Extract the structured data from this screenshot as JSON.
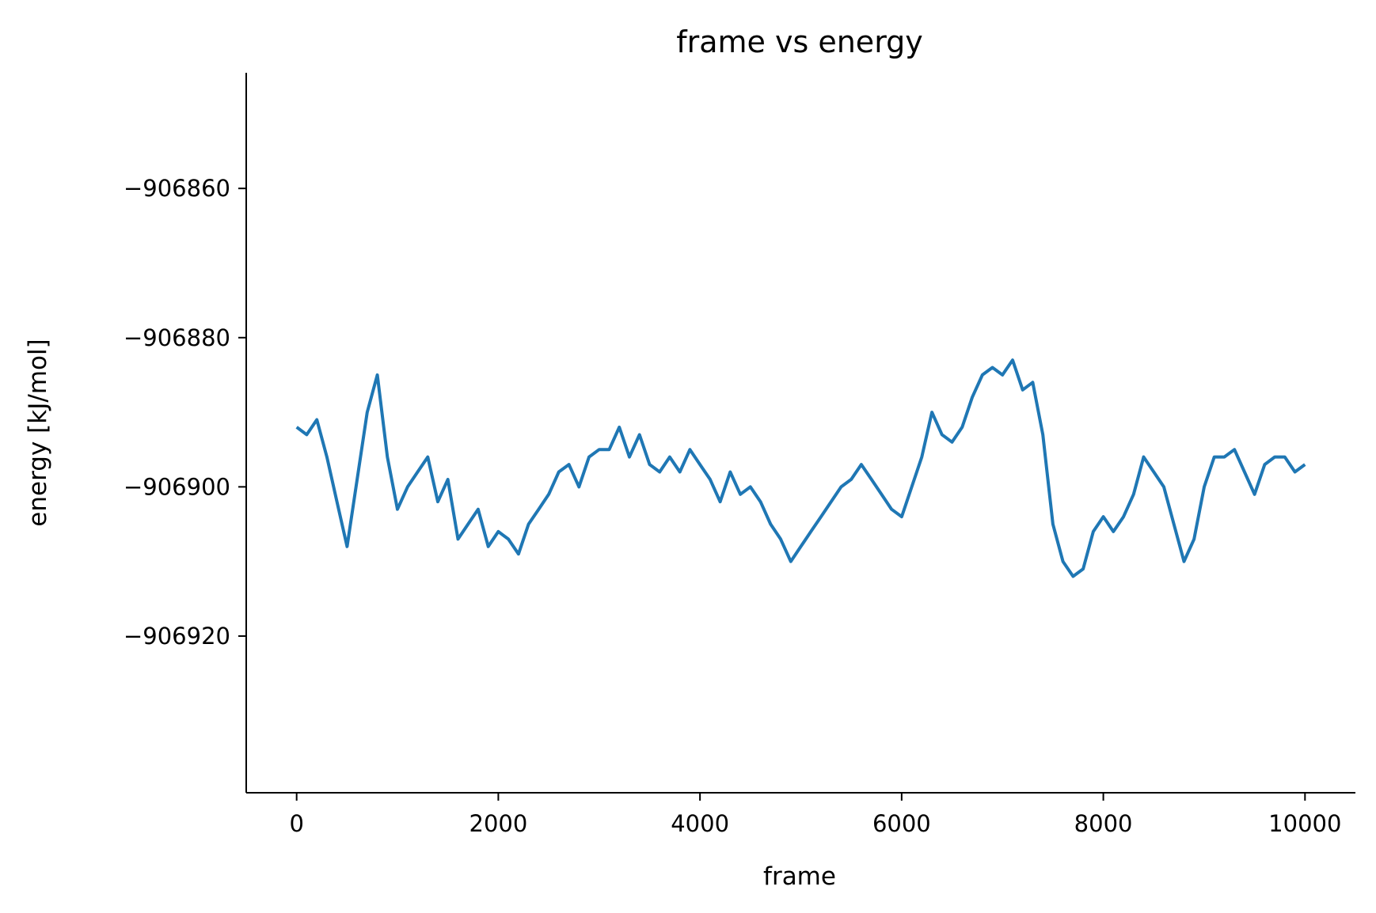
{
  "chart_data": {
    "type": "line",
    "title": "frame vs energy",
    "xlabel": "frame",
    "ylabel": "energy [kJ/mol]",
    "xlim": [
      -500,
      10500
    ],
    "ylim": [
      -906941,
      -906844.5
    ],
    "x_ticks": [
      0,
      2000,
      4000,
      6000,
      8000,
      10000
    ],
    "x_tick_labels": [
      "0",
      "2000",
      "4000",
      "6000",
      "8000",
      "10000"
    ],
    "y_ticks": [
      -906860,
      -906880,
      -906900,
      -906920
    ],
    "y_tick_labels": [
      "−906860",
      "−906880",
      "−906900",
      "−906920"
    ],
    "grid": false,
    "spines": [
      "left",
      "bottom"
    ],
    "colors": {
      "line": "#1f77b4",
      "axis": "#000000"
    },
    "series": [
      {
        "x": [
          0,
          100,
          200,
          300,
          400,
          500,
          600,
          700,
          800,
          900,
          1000,
          1100,
          1200,
          1300,
          1400,
          1500,
          1600,
          1700,
          1800,
          1900,
          2000,
          2100,
          2200,
          2300,
          2400,
          2500,
          2600,
          2700,
          2800,
          2900,
          3000,
          3100,
          3200,
          3300,
          3400,
          3500,
          3600,
          3700,
          3800,
          3900,
          4000,
          4100,
          4200,
          4300,
          4400,
          4500,
          4600,
          4700,
          4800,
          4900,
          5000,
          5100,
          5200,
          5300,
          5400,
          5500,
          5600,
          5700,
          5800,
          5900,
          6000,
          6100,
          6200,
          6300,
          6400,
          6500,
          6600,
          6700,
          6800,
          6900,
          7000,
          7100,
          7200,
          7300,
          7400,
          7500,
          7600,
          7700,
          7800,
          7900,
          8000,
          8100,
          8200,
          8300,
          8400,
          8500,
          8600,
          8700,
          8800,
          8900,
          9000,
          9100,
          9200,
          9300,
          9400,
          9500,
          9600,
          9700,
          9800,
          9900,
          10000
        ],
        "y": [
          -906892,
          -906893,
          -906891,
          -906896,
          -906902,
          -906908,
          -906899,
          -906890,
          -906885,
          -906896,
          -906903,
          -906900,
          -906898,
          -906896,
          -906902,
          -906899,
          -906907,
          -906905,
          -906903,
          -906908,
          -906906,
          -906907,
          -906909,
          -906905,
          -906903,
          -906901,
          -906898,
          -906897,
          -906900,
          -906896,
          -906895,
          -906895,
          -906892,
          -906896,
          -906893,
          -906897,
          -906898,
          -906896,
          -906898,
          -906895,
          -906897,
          -906899,
          -906902,
          -906898,
          -906901,
          -906900,
          -906902,
          -906905,
          -906907,
          -906910,
          -906908,
          -906906,
          -906904,
          -906902,
          -906900,
          -906899,
          -906897,
          -906899,
          -906901,
          -906903,
          -906904,
          -906900,
          -906896,
          -906890,
          -906893,
          -906894,
          -906892,
          -906888,
          -906885,
          -906884,
          -906885,
          -906883,
          -906887,
          -906886,
          -906893,
          -906905,
          -906910,
          -906912,
          -906911,
          -906906,
          -906904,
          -906906,
          -906904,
          -906901,
          -906896,
          -906898,
          -906900,
          -906905,
          -906910,
          -906907,
          -906900,
          -906896,
          -906896,
          -906895,
          -906898,
          -906901,
          -906897,
          -906896,
          -906896,
          -906898,
          -906897
        ]
      }
    ]
  }
}
